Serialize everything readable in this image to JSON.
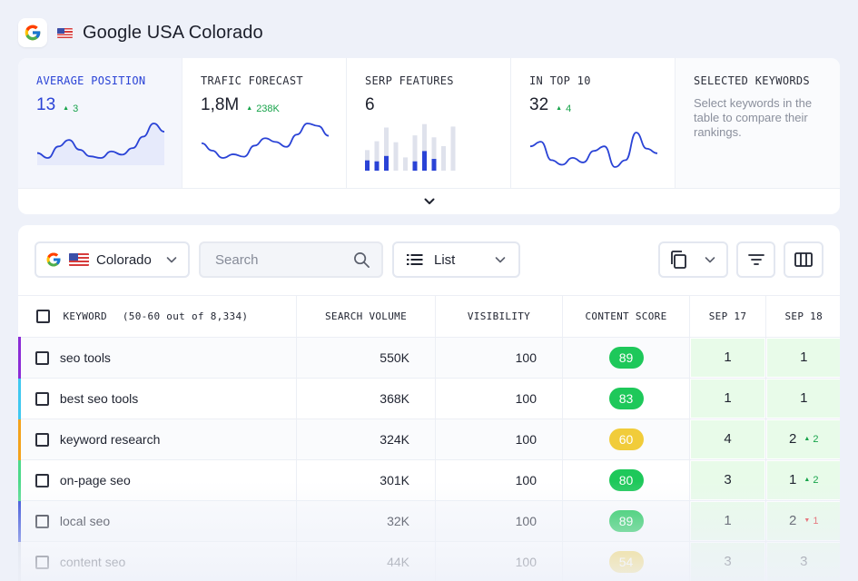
{
  "header": {
    "engine_icon": "google-g-logo",
    "country_icon": "us-flag-icon",
    "title": "Google USA Colorado"
  },
  "metrics": [
    {
      "label": "AVERAGE POSITION",
      "value": "13",
      "delta": "3",
      "delta_dir": "up",
      "sparkline": [
        28,
        31,
        24,
        20,
        26,
        30,
        31,
        27,
        29,
        25,
        18,
        10,
        15
      ]
    },
    {
      "label": "TRAFIC FORECAST",
      "value": "1,8M",
      "delta": "238K",
      "delta_dir": "up",
      "sparkline": [
        18,
        24,
        30,
        27,
        29,
        20,
        14,
        17,
        21,
        11,
        2,
        4,
        12
      ]
    },
    {
      "label": "SERP FEATURES",
      "value": "6",
      "bars": [
        {
          "total": 0.42,
          "highlight": 0.21
        },
        {
          "total": 0.6,
          "highlight": 0.19
        },
        {
          "total": 0.88,
          "highlight": 0.3
        },
        {
          "total": 0.58,
          "highlight": 0
        },
        {
          "total": 0.27,
          "highlight": 0
        },
        {
          "total": 0.72,
          "highlight": 0.19
        },
        {
          "total": 0.95,
          "highlight": 0.4
        },
        {
          "total": 0.68,
          "highlight": 0.24
        },
        {
          "total": 0.5,
          "highlight": 0
        },
        {
          "total": 0.9,
          "highlight": 0
        }
      ]
    },
    {
      "label": "IN TOP 10",
      "value": "32",
      "delta": "4",
      "delta_dir": "up",
      "sparkline": [
        12,
        10,
        18,
        20,
        17,
        19,
        14,
        12,
        21,
        18,
        6,
        13,
        15
      ]
    },
    {
      "label": "SELECTED KEYWORDS",
      "description": "Select keywords in the table to compare their rankings."
    }
  ],
  "toolbar": {
    "location_label": "Colorado",
    "search_placeholder": "Search",
    "view_label": "List"
  },
  "table": {
    "headers": {
      "keyword": "KEYWORD",
      "keyword_sub": "(50-60 out of 8,334)",
      "volume": "SEARCH VOLUME",
      "visibility": "VISIBILITY",
      "content_score": "CONTENT SCORE",
      "date1": "SEP 17",
      "date2": "SEP 18"
    },
    "rows": [
      {
        "keyword": "seo tools",
        "color": "#8b2bd6",
        "volume": "550K",
        "visibility": "100",
        "score": "89",
        "score_color": "#1ec85a",
        "r1": "1",
        "r2": "1",
        "r2_change": "",
        "r2_dir": ""
      },
      {
        "keyword": "best seo tools",
        "color": "#3fc8f0",
        "volume": "368K",
        "visibility": "100",
        "score": "83",
        "score_color": "#1ec85a",
        "r1": "1",
        "r2": "1",
        "r2_change": "",
        "r2_dir": ""
      },
      {
        "keyword": "keyword research",
        "color": "#f3a21c",
        "volume": "324K",
        "visibility": "100",
        "score": "60",
        "score_color": "#f1cc3a",
        "r1": "4",
        "r2": "2",
        "r2_change": "2",
        "r2_dir": "up"
      },
      {
        "keyword": "on-page seo",
        "color": "#4cd98a",
        "volume": "301K",
        "visibility": "100",
        "score": "80",
        "score_color": "#1ec85a",
        "r1": "3",
        "r2": "1",
        "r2_change": "2",
        "r2_dir": "up"
      },
      {
        "keyword": "local seo",
        "color": "#2a43d6",
        "volume": "32K",
        "visibility": "100",
        "score": "89",
        "score_color": "#1ec85a",
        "r1": "1",
        "r2": "2",
        "r2_change": "1",
        "r2_dir": "down"
      },
      {
        "keyword": "content seo",
        "color": "#d9dde6",
        "volume": "44K",
        "visibility": "100",
        "score": "54",
        "score_color": "#f1cc3a",
        "r1": "3",
        "r2": "3",
        "r2_change": "",
        "r2_dir": ""
      }
    ]
  },
  "colors": {
    "accent": "#2a43d6",
    "positive": "#17a34a",
    "negative": "#e0343b",
    "rank_bg": "#e8fbe9"
  }
}
